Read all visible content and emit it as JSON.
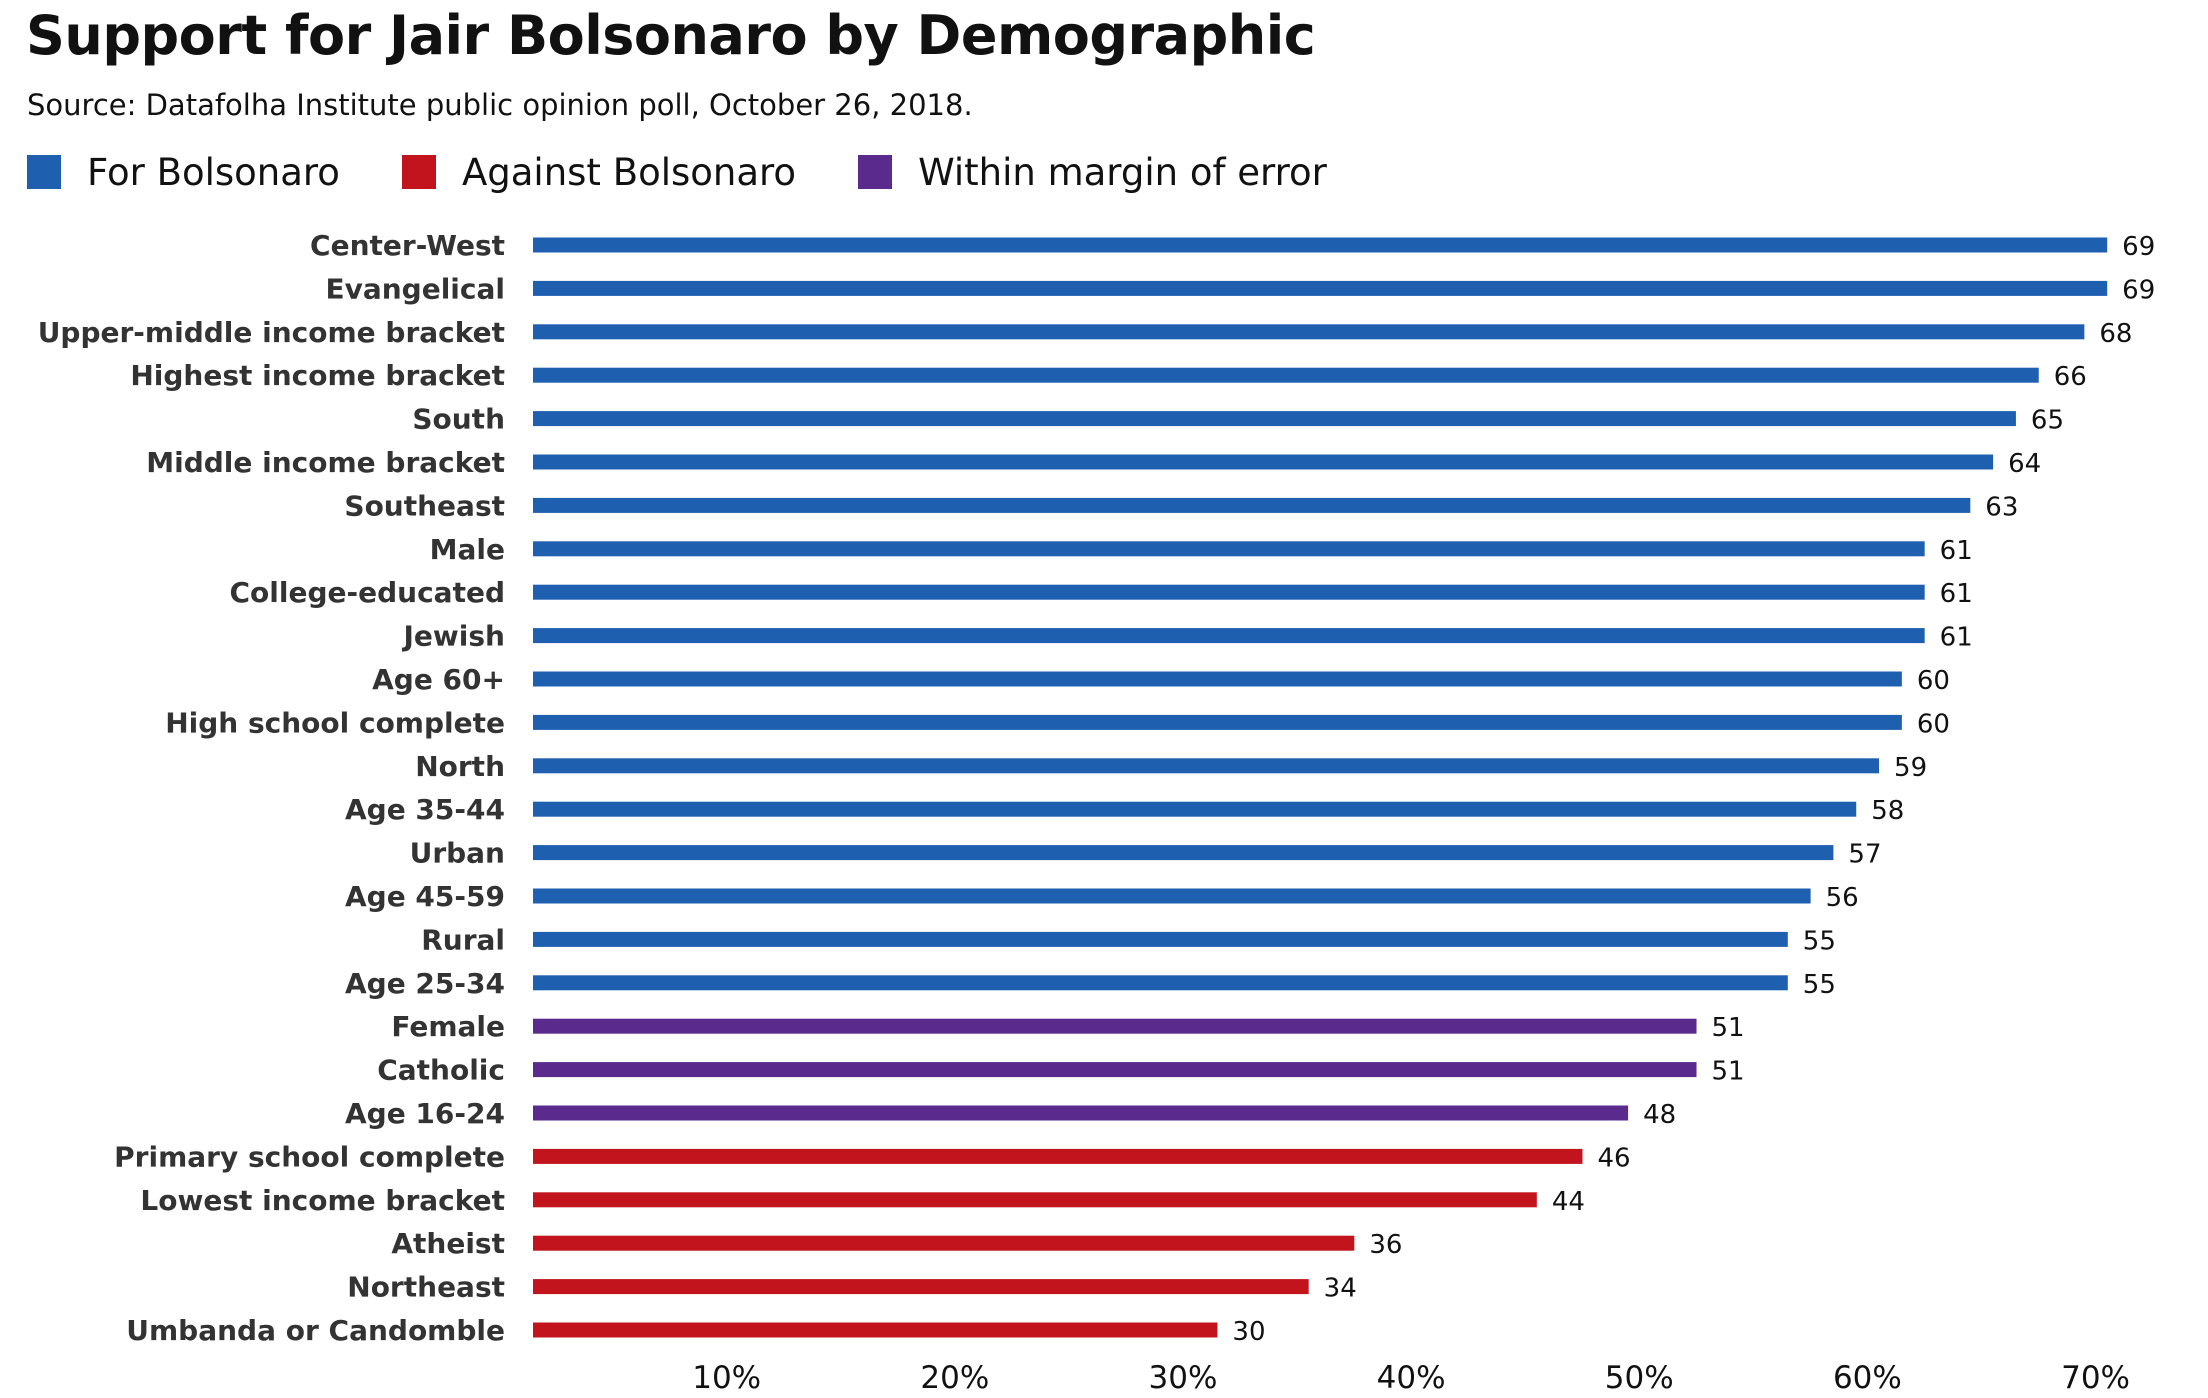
{
  "colors": {
    "for": "#1f5fb0",
    "against": "#c1141c",
    "margin": "#5a2a8c"
  },
  "legend": [
    {
      "key": "for",
      "label": "For Bolsonaro",
      "color": "#1f5fb0"
    },
    {
      "key": "against",
      "label": "Against Bolsonaro",
      "color": "#c1141c"
    },
    {
      "key": "margin",
      "label": "Within margin of error",
      "color": "#5a2a8c"
    }
  ],
  "chart_data": {
    "type": "bar",
    "orientation": "horizontal",
    "title": "Support for Jair Bolsonaro by Demographic",
    "subtitle": "Source: Datafolha Institute public opinion poll, October 26, 2018.",
    "xlim": [
      0,
      70
    ],
    "x_ticks": [
      "10%",
      "20%",
      "30%",
      "40%",
      "50%",
      "60%",
      "70%"
    ],
    "x_tick_values": [
      10,
      20,
      30,
      40,
      50,
      60,
      70
    ],
    "grid": false,
    "legend_position": "top-left",
    "series": [
      {
        "name": "For Bolsonaro",
        "key": "for"
      },
      {
        "name": "Against Bolsonaro",
        "key": "against"
      },
      {
        "name": "Within margin of error",
        "key": "margin"
      }
    ],
    "categories": [
      "Center-West",
      "Evangelical",
      "Upper-middle income bracket",
      "Highest income bracket",
      "South",
      "Middle income bracket",
      "Southeast",
      "Male",
      "College-educated",
      "Jewish",
      "Age 60+",
      "High school complete",
      "North",
      "Age 35-44",
      "Urban",
      "Age 45-59",
      "Rural",
      "Age 25-34",
      "Female",
      "Catholic",
      "Age 16-24",
      "Primary school complete",
      "Lowest income bracket",
      "Atheist",
      "Northeast",
      "Umbanda or Candomble"
    ],
    "values": [
      69,
      69,
      68,
      66,
      65,
      64,
      63,
      61,
      61,
      61,
      60,
      60,
      59,
      58,
      57,
      56,
      55,
      55,
      51,
      51,
      48,
      46,
      44,
      36,
      34,
      30
    ],
    "groups": [
      "for",
      "for",
      "for",
      "for",
      "for",
      "for",
      "for",
      "for",
      "for",
      "for",
      "for",
      "for",
      "for",
      "for",
      "for",
      "for",
      "for",
      "for",
      "margin",
      "margin",
      "margin",
      "against",
      "against",
      "against",
      "against",
      "against"
    ]
  }
}
